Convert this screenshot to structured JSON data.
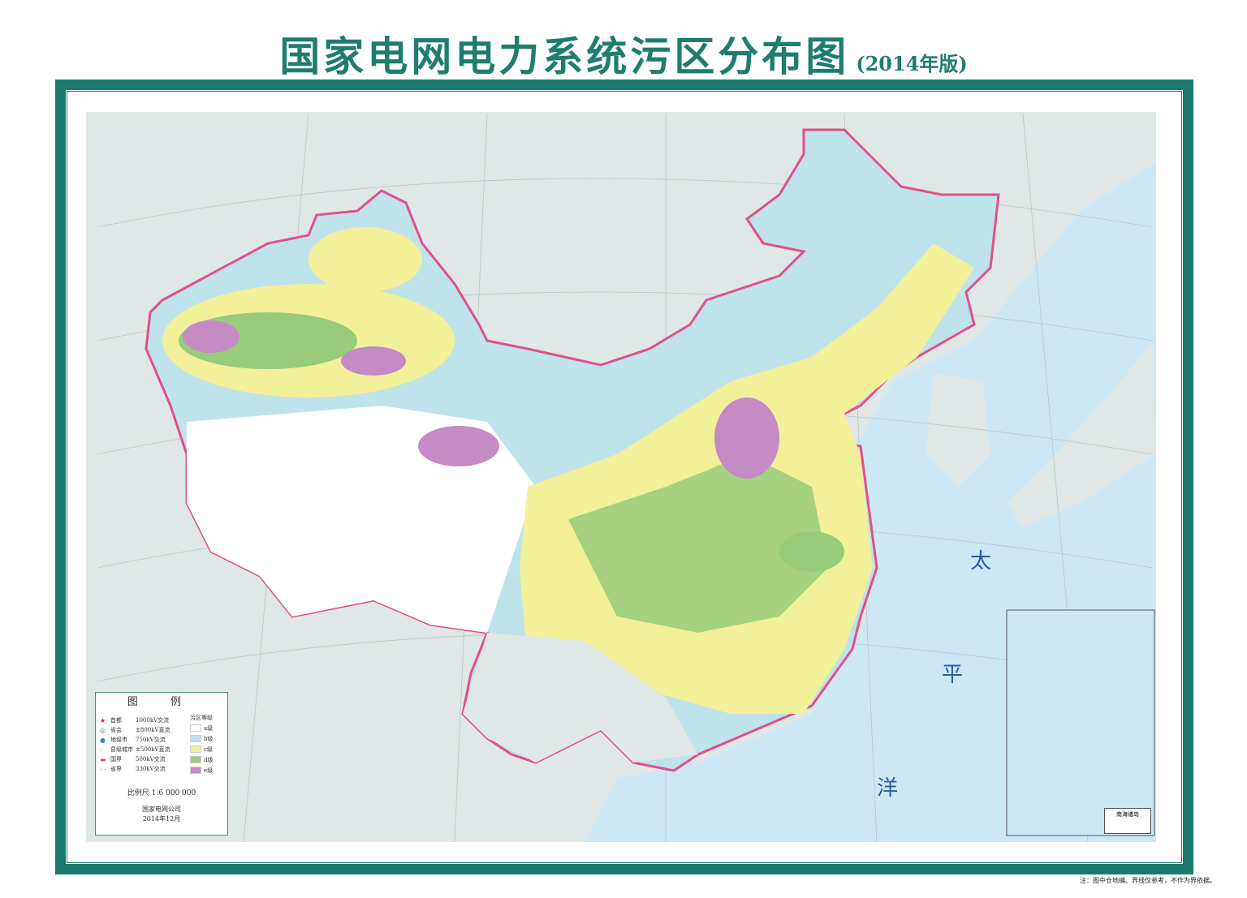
{
  "title": {
    "main": "国家电网电力系统污区分布图",
    "edition": "(2014年版)"
  },
  "colors": {
    "frame": "#1a7a6c",
    "sea": "#cde8f5",
    "foreign_land": "#dfe8e6",
    "border_line": "#e0508a",
    "grade_a": "#ffffff",
    "grade_b": "#bfe3ea",
    "grade_c": "#f3f09a",
    "grade_d": "#98cc7a",
    "grade_e": "#c58bc4"
  },
  "legend": {
    "title": "图 例",
    "symbols": [
      {
        "icon": "star-icon",
        "label": "首都",
        "line": "1000kV交流"
      },
      {
        "icon": "circle-icon",
        "label": "省会",
        "line": "±800kV直流"
      },
      {
        "icon": "dot-icon",
        "label": "地级市",
        "line": "750kV交流"
      },
      {
        "icon": "small-dot-icon",
        "label": "县级城市",
        "line": "±500kV直流"
      },
      {
        "icon": "national-border-icon",
        "label": "国界",
        "line": "500kV交流"
      },
      {
        "icon": "provincial-border-icon",
        "label": "省界",
        "line": "330kV交流"
      }
    ],
    "grade_title": "污区等级",
    "grades": [
      "a级",
      "b级",
      "c级",
      "d级",
      "e级"
    ],
    "scale": "比例尺 1:6 000 000",
    "organization": "国家电网公司",
    "date": "2014年12月"
  },
  "map_labels": {
    "ocean": [
      "太",
      "平",
      "洋"
    ],
    "inset": "南海诸岛"
  },
  "footnote": "注：图中仓地编、界线仅参考，不作为界依据。"
}
